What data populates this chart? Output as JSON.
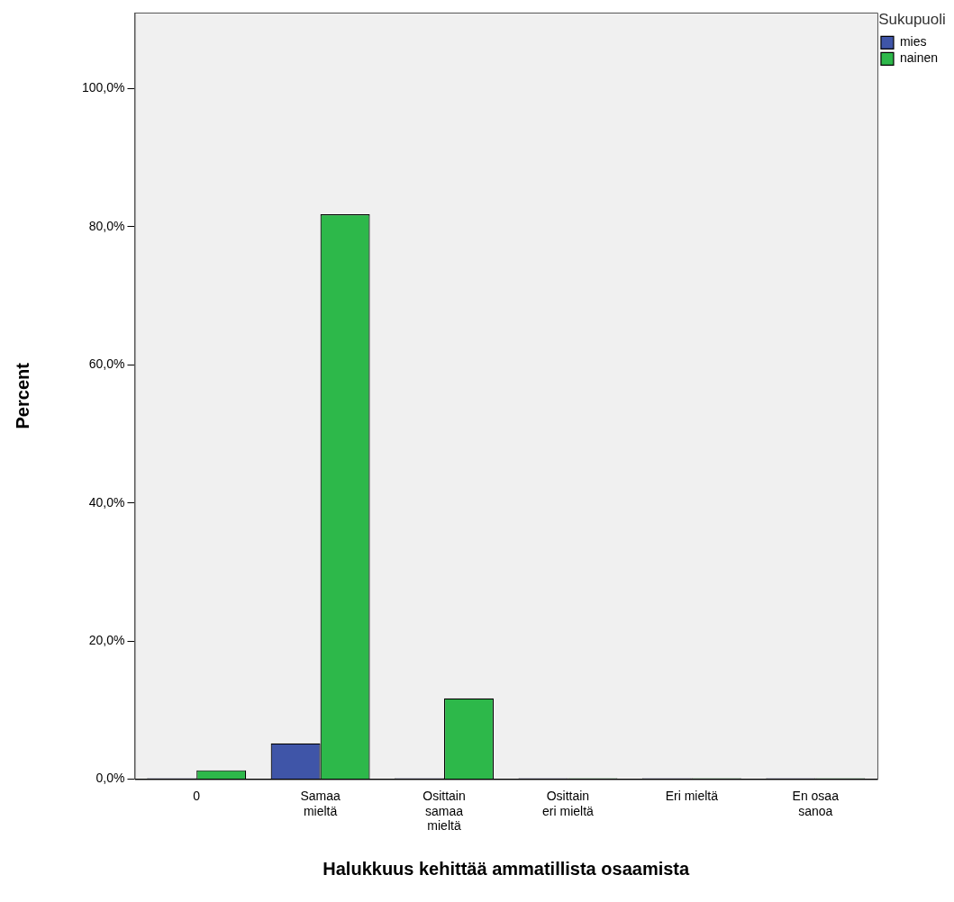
{
  "chart_data": {
    "type": "bar",
    "xlabel": "Halukkuus kehittää ammatillista osaamista",
    "ylabel": "Percent",
    "legend_title": "Sukupuoli",
    "legend": "top right",
    "categories": [
      "0",
      "Samaa mieltä",
      "Osittain samaa mieltä",
      "Osittain eri mieltä",
      "Eri mieltä",
      "En osaa sanoa"
    ],
    "series": [
      {
        "name": "mies",
        "color": "#3f55a8",
        "values": [
          0,
          5.2,
          0,
          0,
          0,
          0
        ]
      },
      {
        "name": "nainen",
        "color": "#2db84a",
        "values": [
          1.3,
          81.8,
          11.7,
          0,
          0,
          0
        ]
      }
    ],
    "ylim": [
      0,
      111
    ],
    "yticks": [
      {
        "value": 0,
        "label": "0,0%"
      },
      {
        "value": 20,
        "label": "20,0%"
      },
      {
        "value": 40,
        "label": "40,0%"
      },
      {
        "value": 60,
        "label": "60,0%"
      },
      {
        "value": 80,
        "label": "80,0%"
      },
      {
        "value": 100,
        "label": "100,0%"
      }
    ],
    "grid": false
  }
}
